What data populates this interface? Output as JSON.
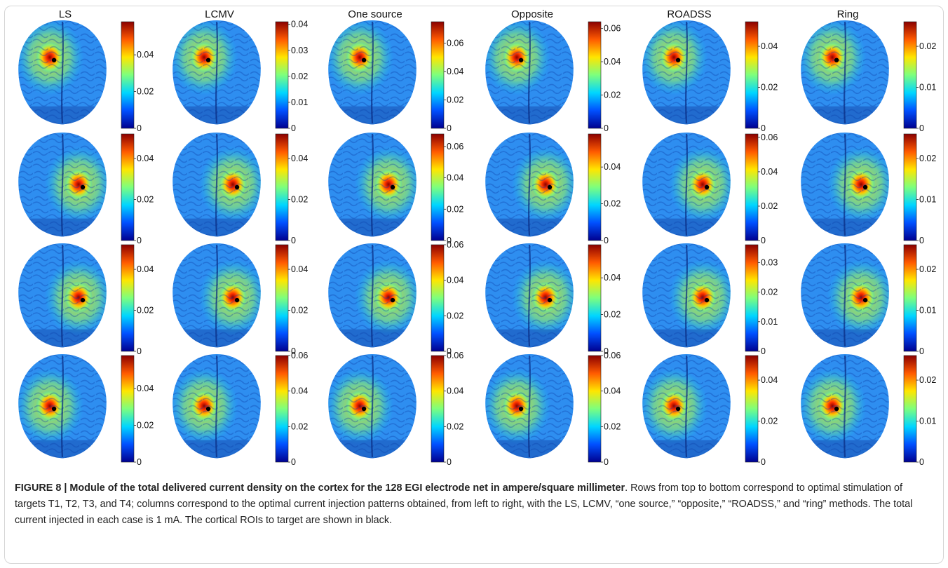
{
  "figure": {
    "columns": [
      {
        "title": "LS"
      },
      {
        "title": "LCMV"
      },
      {
        "title": "One source"
      },
      {
        "title": "Opposite"
      },
      {
        "title": "ROADSS"
      },
      {
        "title": "Ring"
      }
    ],
    "panels": [
      {
        "row": 1,
        "col": "LS",
        "colorbar_ticks": [
          "0.04",
          "0.02",
          "0"
        ],
        "colorbar_max": 0.058,
        "target_marker": "black",
        "hotspot_side": "left"
      },
      {
        "row": 1,
        "col": "LCMV",
        "colorbar_ticks": [
          "0.04",
          "0.03",
          "0.02",
          "0.01",
          "0"
        ],
        "colorbar_max": 0.041,
        "target_marker": "black",
        "hotspot_side": "left"
      },
      {
        "row": 1,
        "col": "One source",
        "colorbar_ticks": [
          "0.06",
          "0.04",
          "0.02",
          "0"
        ],
        "colorbar_max": 0.075,
        "target_marker": "black",
        "hotspot_side": "left"
      },
      {
        "row": 1,
        "col": "Opposite",
        "colorbar_ticks": [
          "0.06",
          "0.04",
          "0.02",
          "0"
        ],
        "colorbar_max": 0.064,
        "target_marker": "black",
        "hotspot_side": "left"
      },
      {
        "row": 1,
        "col": "ROADSS",
        "colorbar_ticks": [
          "0.04",
          "0.02",
          "0"
        ],
        "colorbar_max": 0.052,
        "target_marker": "black",
        "hotspot_side": "left"
      },
      {
        "row": 1,
        "col": "Ring",
        "colorbar_ticks": [
          "0.02",
          "0.01",
          "0"
        ],
        "colorbar_max": 0.026,
        "target_marker": "black",
        "hotspot_side": "left"
      },
      {
        "row": 2,
        "col": "LS",
        "colorbar_ticks": [
          "0.04",
          "0.02",
          "0"
        ],
        "colorbar_max": 0.052,
        "target_marker": "black",
        "hotspot_side": "right"
      },
      {
        "row": 2,
        "col": "LCMV",
        "colorbar_ticks": [
          "0.04",
          "0.02",
          "0"
        ],
        "colorbar_max": 0.052,
        "target_marker": "black",
        "hotspot_side": "right"
      },
      {
        "row": 2,
        "col": "One source",
        "colorbar_ticks": [
          "0.06",
          "0.04",
          "0.02",
          "0"
        ],
        "colorbar_max": 0.068,
        "target_marker": "black",
        "hotspot_side": "right"
      },
      {
        "row": 2,
        "col": "Opposite",
        "colorbar_ticks": [
          "0.04",
          "0.02",
          "0"
        ],
        "colorbar_max": 0.058,
        "target_marker": "black",
        "hotspot_side": "right"
      },
      {
        "row": 2,
        "col": "ROADSS",
        "colorbar_ticks": [
          "0.06",
          "0.04",
          "0.02",
          "0"
        ],
        "colorbar_max": 0.062,
        "target_marker": "black",
        "hotspot_side": "right"
      },
      {
        "row": 2,
        "col": "Ring",
        "colorbar_ticks": [
          "0.02",
          "0.01",
          "0"
        ],
        "colorbar_max": 0.026,
        "target_marker": "black",
        "hotspot_side": "right"
      },
      {
        "row": 3,
        "col": "LS",
        "colorbar_ticks": [
          "0.04",
          "0.02",
          "0"
        ],
        "colorbar_max": 0.052,
        "target_marker": "black",
        "hotspot_side": "right"
      },
      {
        "row": 3,
        "col": "LCMV",
        "colorbar_ticks": [
          "0.04",
          "0.02",
          "0"
        ],
        "colorbar_max": 0.052,
        "target_marker": "black",
        "hotspot_side": "right"
      },
      {
        "row": 3,
        "col": "One source",
        "colorbar_ticks": [
          "0.06",
          "0.04",
          "0.02",
          "0"
        ],
        "colorbar_max": 0.06,
        "target_marker": "black",
        "hotspot_side": "right"
      },
      {
        "row": 3,
        "col": "Opposite",
        "colorbar_ticks": [
          "0.04",
          "0.02",
          "0"
        ],
        "colorbar_max": 0.058,
        "target_marker": "black",
        "hotspot_side": "right"
      },
      {
        "row": 3,
        "col": "ROADSS",
        "colorbar_ticks": [
          "0.03",
          "0.02",
          "0.01",
          "0"
        ],
        "colorbar_max": 0.036,
        "target_marker": "black",
        "hotspot_side": "right"
      },
      {
        "row": 3,
        "col": "Ring",
        "colorbar_ticks": [
          "0.02",
          "0.01",
          "0"
        ],
        "colorbar_max": 0.026,
        "target_marker": "black",
        "hotspot_side": "right"
      },
      {
        "row": 4,
        "col": "LS",
        "colorbar_ticks": [
          "0.04",
          "0.02",
          "0"
        ],
        "colorbar_max": 0.058,
        "target_marker": "black",
        "hotspot_side": "left"
      },
      {
        "row": 4,
        "col": "LCMV",
        "colorbar_ticks": [
          "0.06",
          "0.04",
          "0.02",
          "0"
        ],
        "colorbar_max": 0.06,
        "target_marker": "black",
        "hotspot_side": "left"
      },
      {
        "row": 4,
        "col": "One source",
        "colorbar_ticks": [
          "0.06",
          "0.04",
          "0.02",
          "0"
        ],
        "colorbar_max": 0.06,
        "target_marker": "black",
        "hotspot_side": "left"
      },
      {
        "row": 4,
        "col": "Opposite",
        "colorbar_ticks": [
          "0.06",
          "0.04",
          "0.02",
          "0"
        ],
        "colorbar_max": 0.06,
        "target_marker": "black",
        "hotspot_side": "left"
      },
      {
        "row": 4,
        "col": "ROADSS",
        "colorbar_ticks": [
          "0.04",
          "0.02",
          "0"
        ],
        "colorbar_max": 0.052,
        "target_marker": "black",
        "hotspot_side": "left"
      },
      {
        "row": 4,
        "col": "Ring",
        "colorbar_ticks": [
          "0.02",
          "0.01",
          "0"
        ],
        "colorbar_max": 0.026,
        "target_marker": "black",
        "hotspot_side": "left"
      }
    ],
    "colormap": [
      "#00008f",
      "#0050ff",
      "#00d6ff",
      "#7dff7d",
      "#ffe600",
      "#ff5a00",
      "#8b0000"
    ],
    "brain_base_color": "#2e8ef0",
    "target_color": "#000000"
  },
  "caption": {
    "bold": "FIGURE 8 | Module of the total delivered current density on the cortex for the 128 EGI electrode net in ampere/square millimeter",
    "text": ". Rows from top to bottom correspond to optimal stimulation of targets T1, T2, T3, and T4; columns correspond to the optimal current injection patterns obtained, from left to right, with the LS, LCMV, “one source,” “opposite,” “ROADSS,” and “ring” methods. The total current injected in each case is 1 mA. The cortical ROIs to target are shown in black."
  }
}
